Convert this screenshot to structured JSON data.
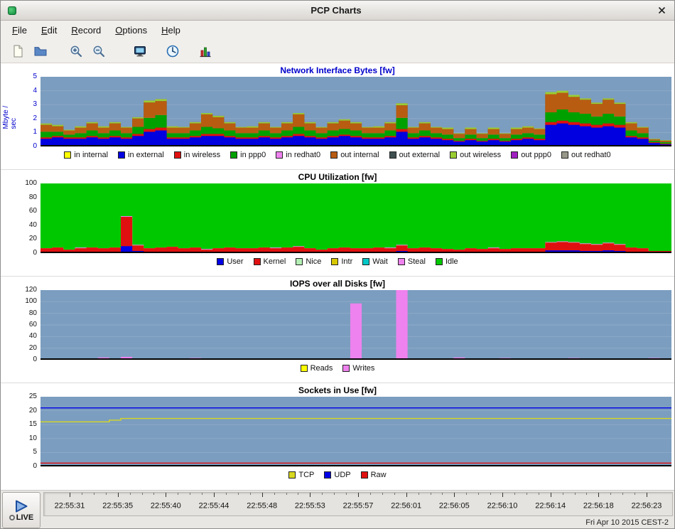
{
  "window": {
    "title": "PCP Charts"
  },
  "menu": {
    "items": [
      {
        "label": "File"
      },
      {
        "label": "Edit"
      },
      {
        "label": "Record"
      },
      {
        "label": "Options"
      },
      {
        "label": "Help"
      }
    ]
  },
  "toolbar": {
    "icons": [
      "new-chart-icon",
      "open-view-icon",
      "zoom-in-icon",
      "zoom-out-icon",
      "export-icon",
      "time-control-icon",
      "new-tab-chart-icon"
    ]
  },
  "plot": {
    "bg": "#7b9dbf",
    "grid": "rgba(255,255,255,0.14)"
  },
  "charts": [
    {
      "id": "c1",
      "title": "Network Interface Bytes [fw]",
      "ylabel": "Mbyte / sec",
      "type": "stacked",
      "ymax": 5,
      "yticks": [
        0,
        1,
        2,
        3,
        4,
        5
      ],
      "samples": 55,
      "axis_color": "#0000cc",
      "series": [
        {
          "label": "in internal",
          "color": "#ffff00",
          "value": 0.05
        },
        {
          "label": "in external",
          "color": "#0000e0",
          "values": [
            0.5,
            0.6,
            0.5,
            0.5,
            0.6,
            0.5,
            0.6,
            0.5,
            0.7,
            1.0,
            1.1,
            0.5,
            0.5,
            0.6,
            0.7,
            0.7,
            0.6,
            0.5,
            0.5,
            0.6,
            0.5,
            0.6,
            0.7,
            0.6,
            0.5,
            0.6,
            0.7,
            0.6,
            0.5,
            0.5,
            0.6,
            1.0,
            0.5,
            0.6,
            0.5,
            0.4,
            0.3,
            0.4,
            0.3,
            0.4,
            0.3,
            0.4,
            0.5,
            0.4,
            1.5,
            1.6,
            1.5,
            1.4,
            1.3,
            1.4,
            1.3,
            0.6,
            0.5,
            0.2,
            0.1
          ]
        },
        {
          "label": "in wireless",
          "color": "#e01010",
          "values": [
            0.1,
            0.1,
            0.1,
            0.1,
            0.1,
            0.1,
            0.1,
            0.1,
            0.15,
            0.2,
            0.2,
            0.1,
            0.1,
            0.1,
            0.15,
            0.15,
            0.1,
            0.1,
            0.1,
            0.1,
            0.1,
            0.1,
            0.15,
            0.1,
            0.1,
            0.1,
            0.1,
            0.1,
            0.1,
            0.1,
            0.1,
            0.2,
            0.1,
            0.1,
            0.1,
            0.1,
            0.05,
            0.1,
            0.05,
            0.1,
            0.05,
            0.1,
            0.1,
            0.1,
            0.2,
            0.2,
            0.2,
            0.2,
            0.2,
            0.2,
            0.2,
            0.1,
            0.1,
            0.05,
            0.05
          ]
        },
        {
          "label": "in ppp0",
          "color": "#00a000",
          "values": [
            0.4,
            0.3,
            0.2,
            0.3,
            0.4,
            0.3,
            0.4,
            0.3,
            0.5,
            0.8,
            0.9,
            0.3,
            0.3,
            0.4,
            0.5,
            0.4,
            0.4,
            0.3,
            0.3,
            0.4,
            0.3,
            0.4,
            0.5,
            0.4,
            0.3,
            0.4,
            0.4,
            0.4,
            0.3,
            0.3,
            0.4,
            0.8,
            0.3,
            0.4,
            0.3,
            0.3,
            0.2,
            0.3,
            0.2,
            0.3,
            0.2,
            0.3,
            0.3,
            0.3,
            0.7,
            0.8,
            0.7,
            0.7,
            0.6,
            0.7,
            0.6,
            0.4,
            0.3,
            0.1,
            0.1
          ]
        },
        {
          "label": "in redhat0",
          "color": "#ee82ee",
          "value": 0
        },
        {
          "label": "out internal",
          "color": "#b85c12",
          "values": [
            0.5,
            0.4,
            0.3,
            0.4,
            0.5,
            0.4,
            0.5,
            0.4,
            0.6,
            1.1,
            1.0,
            0.4,
            0.4,
            0.5,
            0.9,
            0.8,
            0.5,
            0.4,
            0.4,
            0.5,
            0.4,
            0.5,
            0.9,
            0.5,
            0.4,
            0.5,
            0.6,
            0.5,
            0.4,
            0.4,
            0.5,
            0.9,
            0.4,
            0.5,
            0.4,
            0.4,
            0.3,
            0.4,
            0.3,
            0.4,
            0.3,
            0.4,
            0.4,
            0.4,
            1.3,
            1.2,
            1.1,
            1.0,
            0.9,
            1.0,
            0.9,
            0.5,
            0.4,
            0.1,
            0.1
          ]
        },
        {
          "label": "out external",
          "color": "#3f4f4f",
          "value": 0
        },
        {
          "label": "out wireless",
          "color": "#9acd32",
          "values": [
            0.1,
            0.1,
            0.05,
            0.1,
            0.1,
            0.1,
            0.1,
            0.05,
            0.1,
            0.15,
            0.15,
            0.1,
            0.05,
            0.1,
            0.1,
            0.1,
            0.1,
            0.05,
            0.1,
            0.1,
            0.05,
            0.1,
            0.1,
            0.1,
            0.05,
            0.1,
            0.1,
            0.1,
            0.05,
            0.1,
            0.1,
            0.15,
            0.05,
            0.1,
            0.05,
            0.1,
            0.05,
            0.1,
            0.05,
            0.1,
            0.05,
            0.1,
            0.1,
            0.05,
            0.15,
            0.15,
            0.15,
            0.1,
            0.1,
            0.1,
            0.1,
            0.1,
            0.05,
            0.05,
            0.05
          ]
        },
        {
          "label": "out ppp0",
          "color": "#a020c0",
          "value": 0
        },
        {
          "label": "out redhat0",
          "color": "#98988a",
          "value": 0
        }
      ]
    },
    {
      "id": "c2",
      "title": "CPU Utilization [fw]",
      "type": "stacked",
      "ymax": 100,
      "yticks": [
        0,
        20,
        40,
        60,
        80,
        100
      ],
      "samples": 55,
      "series": [
        {
          "label": "User",
          "color": "#0000e6",
          "values": [
            2,
            2,
            1,
            2,
            2,
            2,
            2,
            10,
            3,
            2,
            2,
            2,
            2,
            2,
            1,
            2,
            2,
            2,
            2,
            2,
            2,
            2,
            2,
            2,
            1,
            2,
            2,
            2,
            2,
            2,
            2,
            3,
            2,
            2,
            2,
            2,
            1,
            2,
            2,
            2,
            2,
            2,
            2,
            2,
            4,
            4,
            4,
            3,
            3,
            4,
            3,
            2,
            2,
            1,
            1
          ]
        },
        {
          "label": "Kernel",
          "color": "#e01010",
          "values": [
            5,
            6,
            4,
            5,
            6,
            5,
            6,
            42,
            8,
            5,
            6,
            7,
            5,
            6,
            4,
            5,
            6,
            5,
            5,
            6,
            5,
            6,
            7,
            5,
            4,
            5,
            6,
            5,
            5,
            6,
            5,
            8,
            5,
            6,
            5,
            4,
            4,
            5,
            4,
            5,
            4,
            5,
            5,
            5,
            11,
            12,
            11,
            10,
            9,
            10,
            9,
            6,
            5,
            2,
            2
          ]
        },
        {
          "label": "Nice",
          "color": "#b4f0b4",
          "value": 0
        },
        {
          "label": "Intr",
          "color": "#d8c800",
          "value": 0
        },
        {
          "label": "Wait",
          "color": "#00c8c8",
          "value": 0
        },
        {
          "label": "Steal",
          "color": "#ee82ee",
          "values": [
            0,
            0,
            0,
            1,
            0,
            0,
            0,
            1,
            1,
            0,
            0,
            0,
            0,
            0,
            1,
            0,
            0,
            0,
            0,
            0,
            1,
            0,
            1,
            0,
            0,
            0,
            0,
            0,
            0,
            0,
            1,
            1,
            0,
            0,
            0,
            0,
            0,
            0,
            0,
            1,
            0,
            0,
            0,
            0,
            1,
            1,
            1,
            1,
            1,
            1,
            1,
            0,
            0,
            0,
            0
          ]
        },
        {
          "label": "Idle",
          "color": "#00c800",
          "rest": true
        }
      ]
    },
    {
      "id": "c3",
      "title": "IOPS over all Disks [fw]",
      "type": "stacked",
      "ymax": 120,
      "yticks": [
        0,
        20,
        40,
        60,
        80,
        100,
        120
      ],
      "samples": 55,
      "series": [
        {
          "label": "Reads",
          "color": "#ffff00",
          "value": 0
        },
        {
          "label": "Writes",
          "color": "#ee82ee",
          "values": [
            0,
            0,
            0,
            0,
            0,
            4,
            0,
            5,
            0,
            0,
            0,
            0,
            0,
            3,
            0,
            0,
            0,
            0,
            0,
            0,
            0,
            0,
            0,
            0,
            0,
            0,
            0,
            97,
            0,
            0,
            0,
            120,
            0,
            0,
            0,
            0,
            4,
            0,
            0,
            0,
            3,
            0,
            0,
            0,
            0,
            0,
            3,
            0,
            0,
            0,
            0,
            0,
            0,
            3,
            0
          ]
        }
      ]
    },
    {
      "id": "c4",
      "title": "Sockets in Use [fw]",
      "type": "line",
      "ymax": 25,
      "yticks": [
        0,
        5,
        10,
        15,
        20,
        25
      ],
      "samples": 55,
      "series": [
        {
          "label": "TCP",
          "color": "#d8d820",
          "rle": [
            [
              6,
              16
            ],
            [
              1,
              16.6
            ],
            [
              48,
              17.2
            ]
          ]
        },
        {
          "label": "UDP",
          "color": "#0000e6",
          "value": 21
        },
        {
          "label": "Raw",
          "color": "#e01010",
          "value": 1.2
        }
      ]
    }
  ],
  "timebar": {
    "live_label": "LIVE",
    "labels": [
      "22:55:31",
      "22:55:35",
      "22:55:40",
      "22:55:44",
      "22:55:48",
      "22:55:53",
      "22:55:57",
      "22:56:01",
      "22:56:05",
      "22:56:10",
      "22:56:14",
      "22:56:18",
      "22:56:23"
    ]
  },
  "statusbar": {
    "datetime": "Fri Apr 10 2015 CEST-2"
  }
}
